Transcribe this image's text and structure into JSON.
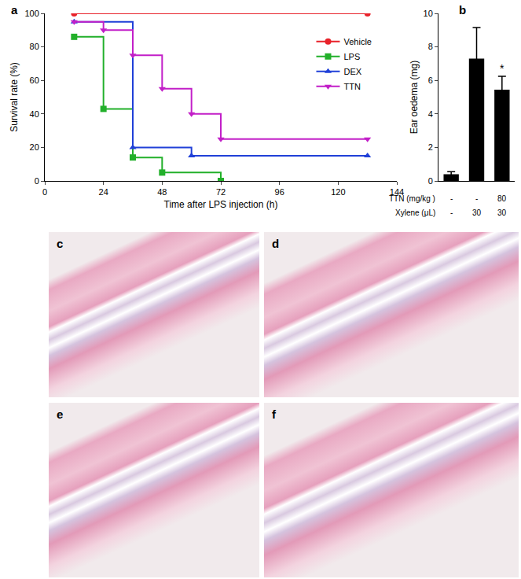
{
  "chart_data": [
    {
      "title": "a",
      "type": "line",
      "line_style": "step",
      "x_label": "Time after LPS injection (h)",
      "y_label": "Survival rate (%)",
      "xlim": [
        0,
        144
      ],
      "xticks": [
        0,
        24,
        48,
        72,
        96,
        120,
        144
      ],
      "ylim": [
        0,
        100
      ],
      "yticks": [
        0,
        20,
        40,
        60,
        80,
        100
      ],
      "legend": "top right",
      "series": [
        {
          "name": "Vehicle",
          "color": "#e8222a",
          "marker": "circle",
          "x": [
            12,
            132
          ],
          "values": [
            100,
            100
          ]
        },
        {
          "name": "LPS",
          "color": "#22b02a",
          "marker": "square",
          "x": [
            12,
            24,
            36,
            48,
            72
          ],
          "values": [
            86,
            43,
            14,
            5,
            0
          ]
        },
        {
          "name": "DEX",
          "color": "#2040d8",
          "marker": "triangle-up",
          "x": [
            12,
            36,
            60,
            132
          ],
          "values": [
            95,
            20,
            15,
            15
          ]
        },
        {
          "name": "TTN",
          "color": "#c21fc8",
          "marker": "triangle-down",
          "x": [
            12,
            24,
            36,
            48,
            60,
            72,
            132
          ],
          "values": [
            95,
            90,
            75,
            55,
            40,
            25,
            25
          ]
        }
      ]
    },
    {
      "title": "b",
      "type": "bar",
      "y_label": "Ear oedema (mg)",
      "categories": [
        null,
        null,
        null
      ],
      "values": [
        0.4,
        7.3,
        5.45
      ],
      "errors": [
        0.15,
        1.85,
        0.8
      ],
      "color": "#000000",
      "ylim": [
        0,
        10
      ],
      "yticks": [
        0,
        2,
        4,
        6,
        8,
        10
      ],
      "annotations": [
        {
          "category": 2,
          "text": "*"
        }
      ],
      "table": [
        {
          "label": "TTN (mg/kg )",
          "values": [
            "-",
            "-",
            "80"
          ]
        },
        {
          "label": "Xylene (μL)",
          "values": [
            "-",
            "30",
            "30"
          ]
        }
      ]
    }
  ],
  "images": [
    {
      "label": "c"
    },
    {
      "label": "d"
    },
    {
      "label": "e"
    },
    {
      "label": "f"
    }
  ]
}
